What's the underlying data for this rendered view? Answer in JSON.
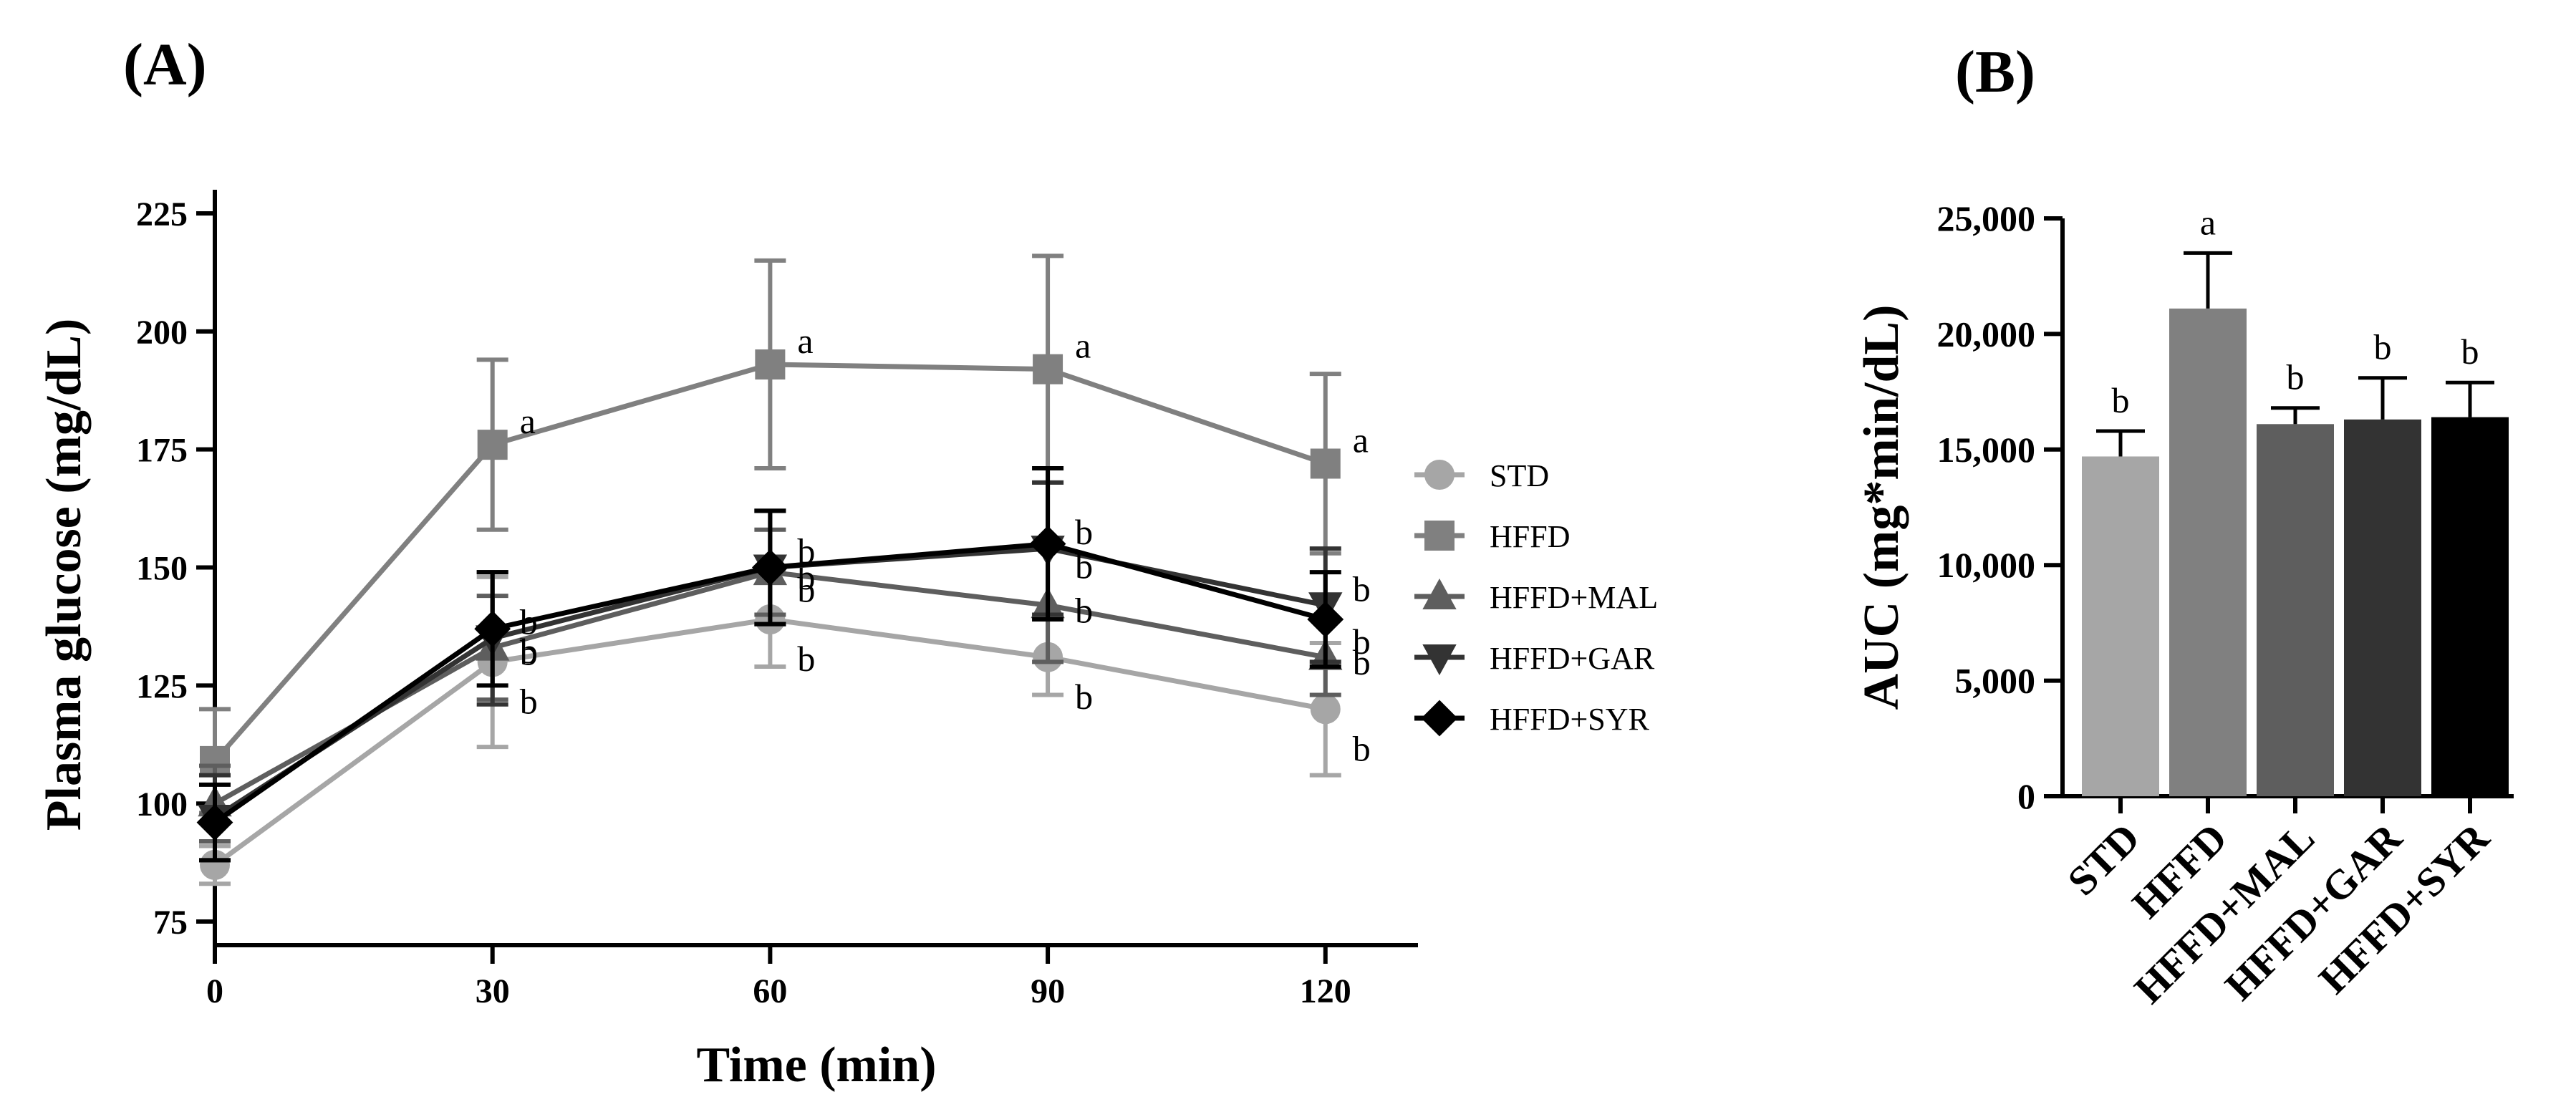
{
  "panel_a_label": "(A)",
  "panel_b_label": "(B)",
  "chart_data": [
    {
      "type": "line",
      "panel": "(A)",
      "xlabel": "Time (min)",
      "ylabel": "Plasma glucose (mg/dL)",
      "x": [
        0,
        30,
        60,
        90,
        120
      ],
      "xticks": [
        "0",
        "30",
        "60",
        "90",
        "120"
      ],
      "xlim": [
        0,
        130
      ],
      "ylim": [
        70,
        230
      ],
      "yticks": [
        75,
        100,
        125,
        150,
        175,
        200,
        225
      ],
      "legend_position": "right",
      "series": [
        {
          "name": "STD",
          "marker": "circle",
          "color": "#a6a6a6",
          "values": [
            87,
            130,
            139,
            131,
            120
          ],
          "errors": [
            4,
            18,
            10,
            8,
            14
          ],
          "sig": [
            "",
            "b",
            "b",
            "b",
            "b"
          ]
        },
        {
          "name": "HFFD",
          "marker": "square",
          "color": "#808080",
          "values": [
            109,
            176,
            193,
            192,
            172
          ],
          "errors": [
            11,
            18,
            22,
            24,
            19
          ],
          "sig": [
            "",
            "a",
            "a",
            "a",
            "a"
          ]
        },
        {
          "name": "HFFD+MAL",
          "marker": "triangle-up",
          "color": "#5e5e5e",
          "values": [
            100,
            133,
            149,
            142,
            131
          ],
          "errors": [
            8,
            11,
            9,
            12,
            8
          ],
          "sig": [
            "",
            "b",
            "b",
            "b",
            "b"
          ]
        },
        {
          "name": "HFFD+GAR",
          "marker": "triangle-down",
          "color": "#333333",
          "values": [
            97,
            135,
            150,
            154,
            142
          ],
          "errors": [
            9,
            14,
            12,
            14,
            12
          ],
          "sig": [
            "",
            "b",
            "b",
            "b",
            "b"
          ]
        },
        {
          "name": "HFFD+SYR",
          "marker": "diamond",
          "color": "#000000",
          "values": [
            96,
            137,
            150,
            155,
            139
          ],
          "errors": [
            8,
            12,
            12,
            16,
            10
          ],
          "sig": [
            "",
            "b",
            "b",
            "b",
            "b"
          ]
        }
      ]
    },
    {
      "type": "bar",
      "panel": "(B)",
      "xlabel": "",
      "ylabel": "AUC (mg*min/dL)",
      "ylim": [
        0,
        25000
      ],
      "yticks": [
        0,
        5000,
        10000,
        15000,
        20000,
        25000
      ],
      "ytick_labels": [
        "0",
        "5,000",
        "10,000",
        "15,000",
        "20,000",
        "25,000"
      ],
      "categories": [
        "STD",
        "HFFD",
        "HFFD+MAL",
        "HFFD+GAR",
        "HFFD+SYR"
      ],
      "values": [
        14700,
        21100,
        16100,
        16300,
        16400
      ],
      "errors": [
        1100,
        2400,
        700,
        1800,
        1500
      ],
      "colors": [
        "#a6a6a6",
        "#808080",
        "#5e5e5e",
        "#333333",
        "#000000"
      ],
      "sig": [
        "b",
        "a",
        "b",
        "b",
        "b"
      ]
    }
  ]
}
